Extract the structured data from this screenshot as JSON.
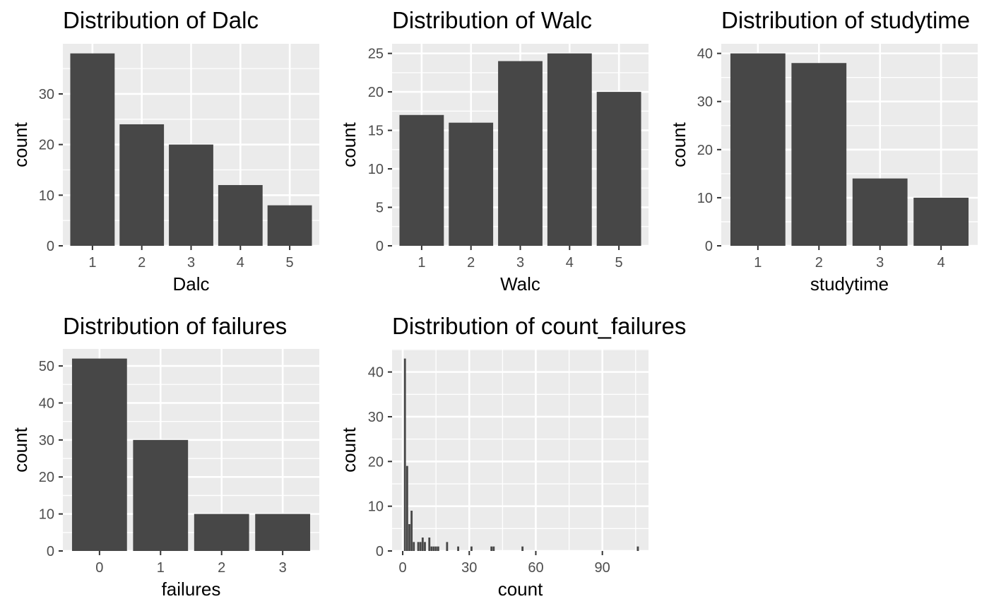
{
  "colors": {
    "panel_background": "#ebebeb",
    "bar_fill": "#474747",
    "grid": "#ffffff",
    "tick_label": "#4d4d4d"
  },
  "chart_data": [
    {
      "type": "bar",
      "title": "Distribution of Dalc",
      "xlabel": "Dalc",
      "ylabel": "count",
      "categories": [
        "1",
        "2",
        "3",
        "4",
        "5"
      ],
      "values": [
        38,
        24,
        20,
        12,
        8
      ],
      "yticks": [
        0,
        10,
        20,
        30
      ],
      "ylim": [
        0,
        39.9
      ],
      "grid": true
    },
    {
      "type": "bar",
      "title": "Distribution of Walc",
      "xlabel": "Walc",
      "ylabel": "count",
      "categories": [
        "1",
        "2",
        "3",
        "4",
        "5"
      ],
      "values": [
        17,
        16,
        24,
        25,
        20
      ],
      "yticks": [
        0,
        5,
        10,
        15,
        20,
        25
      ],
      "ylim": [
        0,
        26.25
      ],
      "grid": true
    },
    {
      "type": "bar",
      "title": "Distribution of studytime",
      "xlabel": "studytime",
      "ylabel": "count",
      "categories": [
        "1",
        "2",
        "3",
        "4"
      ],
      "values": [
        40,
        38,
        14,
        10
      ],
      "yticks": [
        0,
        10,
        20,
        30,
        40
      ],
      "ylim": [
        0,
        42
      ],
      "grid": true
    },
    {
      "type": "bar",
      "title": "Distribution of failures",
      "xlabel": "failures",
      "ylabel": "count",
      "categories": [
        "0",
        "1",
        "2",
        "3"
      ],
      "values": [
        52,
        30,
        10,
        10
      ],
      "yticks": [
        0,
        10,
        20,
        30,
        40,
        50
      ],
      "ylim": [
        0,
        54.6
      ],
      "grid": true
    },
    {
      "type": "bar",
      "title": "Distribution of count_failures",
      "xlabel": "count",
      "ylabel": "count",
      "bar_width": 1,
      "x": [
        1,
        2,
        3,
        4,
        5,
        7,
        8,
        9,
        10,
        12,
        13,
        14,
        15,
        16,
        20,
        25,
        31,
        40,
        41,
        54,
        106
      ],
      "values": [
        43,
        19,
        6,
        9,
        2,
        2,
        2,
        3,
        2,
        3,
        1,
        1,
        1,
        1,
        2,
        1,
        1,
        1,
        1,
        1,
        1
      ],
      "xticks": [
        0,
        30,
        60,
        90
      ],
      "yticks": [
        0,
        10,
        20,
        30,
        40
      ],
      "xlim": [
        -4.8,
        110.8
      ],
      "ylim": [
        0,
        45.15
      ],
      "grid": true
    }
  ]
}
